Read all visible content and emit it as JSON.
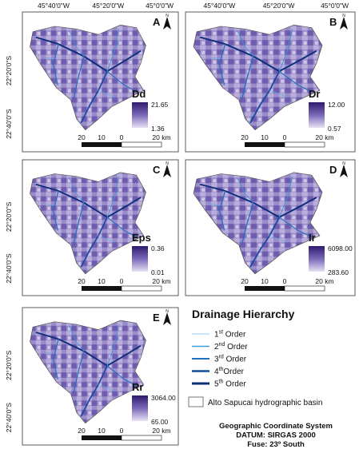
{
  "lon_labels": [
    "45°40'0\"W",
    "45°20'0\"W",
    "45°0'0\"W"
  ],
  "lat_labels": [
    "22°20'0\"S",
    "22°40'0\"S"
  ],
  "north": "N",
  "scale_labels": [
    "20",
    "10",
    "0"
  ],
  "scale_unit": "20 km",
  "panels": [
    {
      "letter": "A",
      "variable": "Dd",
      "max": "21.65",
      "min": "1.36"
    },
    {
      "letter": "B",
      "variable": "Dr",
      "max": "12.00",
      "min": "0.57"
    },
    {
      "letter": "C",
      "variable": "Eps",
      "max": "0.36",
      "min": "0.01"
    },
    {
      "letter": "D",
      "variable": "Ir",
      "max": "6098.00",
      "min": "283.60"
    },
    {
      "letter": "E",
      "variable": "Rr",
      "max": "3064.00",
      "min": "65.00"
    }
  ],
  "legend": {
    "title": "Drainage Hierarchy",
    "orders": [
      {
        "num": "1",
        "sup": "st",
        "text": " Order"
      },
      {
        "num": "2",
        "sup": "nd",
        "text": " Order"
      },
      {
        "num": "3",
        "sup": "rd",
        "text": " Order"
      },
      {
        "num": "4",
        "sup": "th",
        "text": "Order"
      },
      {
        "num": "5",
        "sup": "th",
        "text": " Order"
      }
    ],
    "basin": "Alto Sapucai hydrographic basin"
  },
  "footer": [
    "Geographic Coordinate System",
    "DATUM: SIRGAS 2000",
    "Fuse: 23º South"
  ]
}
